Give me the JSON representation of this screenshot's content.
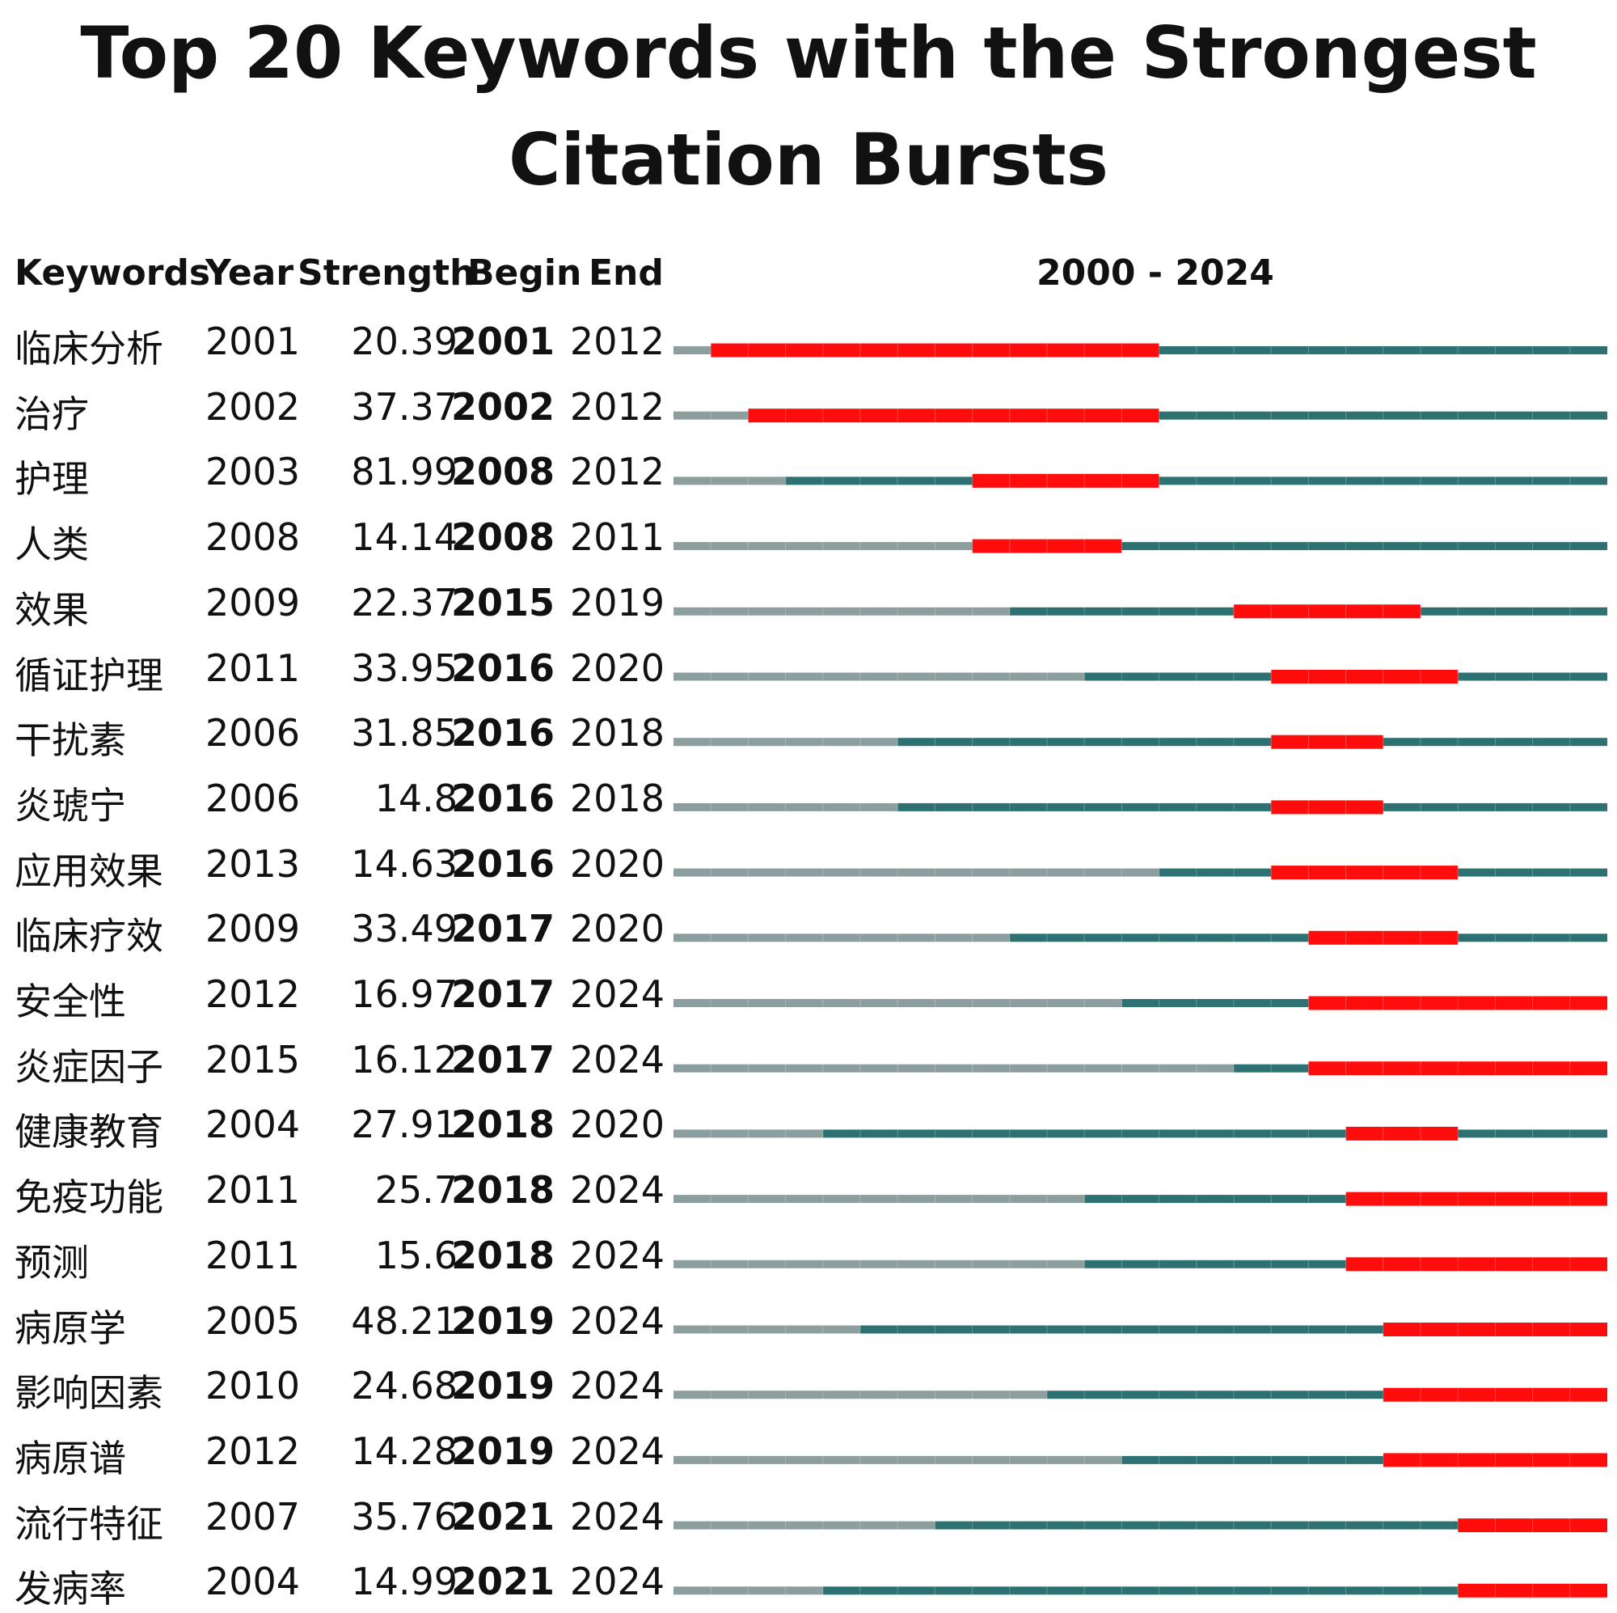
{
  "chart_data": {
    "type": "table",
    "title": "Top 20 Keywords with the Strongest Citation Bursts",
    "columns": [
      "Keywords",
      "Year",
      "Strength",
      "Begin",
      "End"
    ],
    "range_label": "2000 - 2024",
    "x_range": [
      2000,
      2024
    ],
    "colors": {
      "before_start": "#8c9e9e",
      "active": "#2e7172",
      "burst": "#ff0c0c"
    },
    "rows": [
      {
        "keyword": "临床分析",
        "year": 2001,
        "strength": "20.39",
        "begin": 2001,
        "end": 2012
      },
      {
        "keyword": "治疗",
        "year": 2002,
        "strength": "37.37",
        "begin": 2002,
        "end": 2012
      },
      {
        "keyword": "护理",
        "year": 2003,
        "strength": "81.99",
        "begin": 2008,
        "end": 2012
      },
      {
        "keyword": "人类",
        "year": 2008,
        "strength": "14.14",
        "begin": 2008,
        "end": 2011
      },
      {
        "keyword": "效果",
        "year": 2009,
        "strength": "22.37",
        "begin": 2015,
        "end": 2019
      },
      {
        "keyword": "循证护理",
        "year": 2011,
        "strength": "33.95",
        "begin": 2016,
        "end": 2020
      },
      {
        "keyword": "干扰素",
        "year": 2006,
        "strength": "31.85",
        "begin": 2016,
        "end": 2018
      },
      {
        "keyword": "炎琥宁",
        "year": 2006,
        "strength": "14.8",
        "begin": 2016,
        "end": 2018
      },
      {
        "keyword": "应用效果",
        "year": 2013,
        "strength": "14.63",
        "begin": 2016,
        "end": 2020
      },
      {
        "keyword": "临床疗效",
        "year": 2009,
        "strength": "33.49",
        "begin": 2017,
        "end": 2020
      },
      {
        "keyword": "安全性",
        "year": 2012,
        "strength": "16.97",
        "begin": 2017,
        "end": 2024
      },
      {
        "keyword": "炎症因子",
        "year": 2015,
        "strength": "16.12",
        "begin": 2017,
        "end": 2024
      },
      {
        "keyword": "健康教育",
        "year": 2004,
        "strength": "27.91",
        "begin": 2018,
        "end": 2020
      },
      {
        "keyword": "免疫功能",
        "year": 2011,
        "strength": "25.7",
        "begin": 2018,
        "end": 2024
      },
      {
        "keyword": "预测",
        "year": 2011,
        "strength": "15.6",
        "begin": 2018,
        "end": 2024
      },
      {
        "keyword": "病原学",
        "year": 2005,
        "strength": "48.21",
        "begin": 2019,
        "end": 2024
      },
      {
        "keyword": "影响因素",
        "year": 2010,
        "strength": "24.68",
        "begin": 2019,
        "end": 2024
      },
      {
        "keyword": "病原谱",
        "year": 2012,
        "strength": "14.28",
        "begin": 2019,
        "end": 2024
      },
      {
        "keyword": "流行特征",
        "year": 2007,
        "strength": "35.76",
        "begin": 2021,
        "end": 2024
      },
      {
        "keyword": "发病率",
        "year": 2004,
        "strength": "14.99",
        "begin": 2021,
        "end": 2024
      }
    ]
  }
}
